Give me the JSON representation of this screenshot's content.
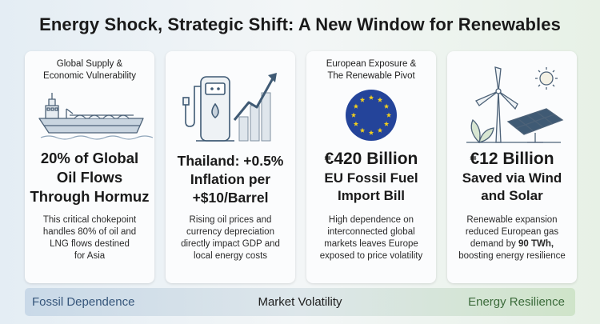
{
  "title": "Energy Shock, Strategic Shift: A New Window for Renewables",
  "cards": [
    {
      "header_line1": "Global Supply &",
      "header_line2": "Economic Vulnerability",
      "headline_lines": [
        "20% of Global",
        "Oil Flows",
        "Through Hormuz"
      ],
      "body_lines": [
        "This critical chokepoint",
        "handles 80% of oil and",
        "LNG flows destined",
        "for Asia"
      ],
      "icon": "tanker-ship-icon"
    },
    {
      "header_line1": "",
      "header_line2": "",
      "headline_lines": [
        "Thailand: +0.5%",
        "Inflation per",
        "+$10/Barrel"
      ],
      "body_lines": [
        "Rising oil prices and",
        "currency depreciation",
        "directly impact GDP and",
        "local energy costs"
      ],
      "icon": "fuel-pump-rising-chart-icon"
    },
    {
      "header_line1": "European Exposure &",
      "header_line2": "The Renewable Pivot",
      "headline_line1": "€420 Billion",
      "headline_lines": [
        "EU Fossil Fuel",
        "Import Bill"
      ],
      "body_lines": [
        "High dependence on",
        "interconnected global",
        "markets leaves Europe",
        "exposed to price volatility"
      ],
      "icon": "eu-flag-icon"
    },
    {
      "header_line1": "",
      "header_line2": "",
      "headline_line1": "€12 Billion",
      "headline_lines": [
        "Saved via Wind",
        "and Solar"
      ],
      "body_lines": [
        "Renewable expansion",
        "reduced European gas",
        "demand by",
        "90 TWh,",
        "boosting energy resilience"
      ],
      "icon": "wind-turbine-solar-panel-icon"
    }
  ],
  "bar": {
    "left": "Fossil Dependence",
    "center": "Market Volatility",
    "right": "Energy Resilience"
  },
  "colors": {
    "eu_blue": "#24449a",
    "eu_star": "#f2cf1d",
    "left_label": "#35557a",
    "right_label": "#3b6a3a"
  }
}
